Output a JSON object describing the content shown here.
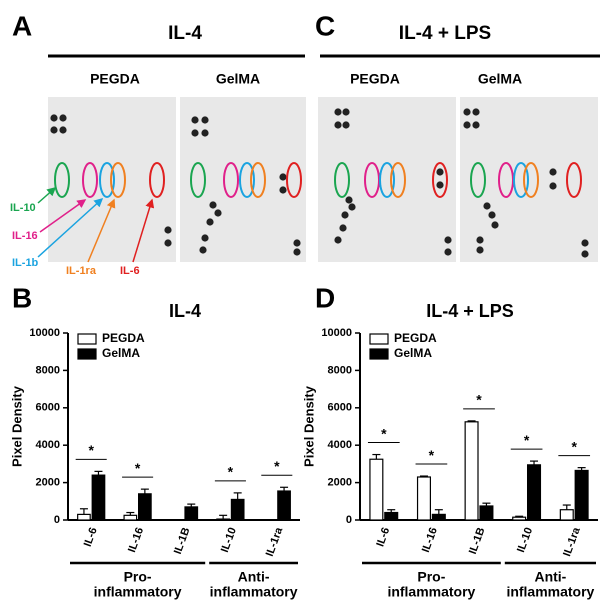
{
  "panels": [
    {
      "label": "A",
      "title": "IL-4",
      "columns": [
        "PEGDA",
        "GelMA"
      ]
    },
    {
      "label": "C",
      "title": "IL-4 + LPS",
      "columns": [
        "PEGDA",
        "GelMA"
      ]
    }
  ],
  "spot_labels": [
    "IL-10",
    "IL-16",
    "IL-1b",
    "IL-1ra",
    "IL-6"
  ],
  "chart_data": [
    {
      "type": "bar",
      "label": "B",
      "title": "IL-4",
      "ylabel": "Pixel Density",
      "categories": [
        "IL-6",
        "IL-16",
        "IL-1B",
        "IL-10",
        "IL-1ra"
      ],
      "series": [
        {
          "name": "PEGDA",
          "color": "#ffffff",
          "values": [
            300,
            250,
            0,
            50,
            0
          ],
          "errors": [
            300,
            150,
            0,
            200,
            0
          ]
        },
        {
          "name": "GelMA",
          "color": "#000000",
          "values": [
            2400,
            1400,
            700,
            1100,
            1550
          ],
          "errors": [
            200,
            250,
            150,
            350,
            200
          ]
        }
      ],
      "significance": [
        "*",
        "*",
        null,
        "*",
        "*"
      ],
      "groups": [
        {
          "lines": [
            "Pro-",
            "inflammatory"
          ],
          "span": [
            0,
            2
          ]
        },
        {
          "lines": [
            "Anti-",
            "inflammatory"
          ],
          "span": [
            3,
            4
          ]
        }
      ],
      "ylim": [
        0,
        10000
      ],
      "yticks": [
        0,
        2000,
        4000,
        6000,
        8000,
        10000
      ]
    },
    {
      "type": "bar",
      "label": "D",
      "title": "IL-4 + LPS",
      "ylabel": "Pixel Density",
      "categories": [
        "IL-6",
        "IL-16",
        "IL-1B",
        "IL-10",
        "IL-1ra"
      ],
      "series": [
        {
          "name": "PEGDA",
          "color": "#ffffff",
          "values": [
            3250,
            2300,
            5250,
            150,
            550
          ],
          "errors": [
            250,
            50,
            50,
            50,
            250
          ]
        },
        {
          "name": "GelMA",
          "color": "#000000",
          "values": [
            400,
            300,
            750,
            2950,
            2650
          ],
          "errors": [
            150,
            250,
            150,
            200,
            150
          ]
        }
      ],
      "significance": [
        "*",
        "*",
        "*",
        "*",
        "*"
      ],
      "groups": [
        {
          "lines": [
            "Pro-",
            "inflammatory"
          ],
          "span": [
            0,
            2
          ]
        },
        {
          "lines": [
            "Anti-",
            "inflammatory"
          ],
          "span": [
            3,
            4
          ]
        }
      ],
      "ylim": [
        0,
        10000
      ],
      "yticks": [
        0,
        2000,
        4000,
        6000,
        8000,
        10000
      ]
    }
  ]
}
